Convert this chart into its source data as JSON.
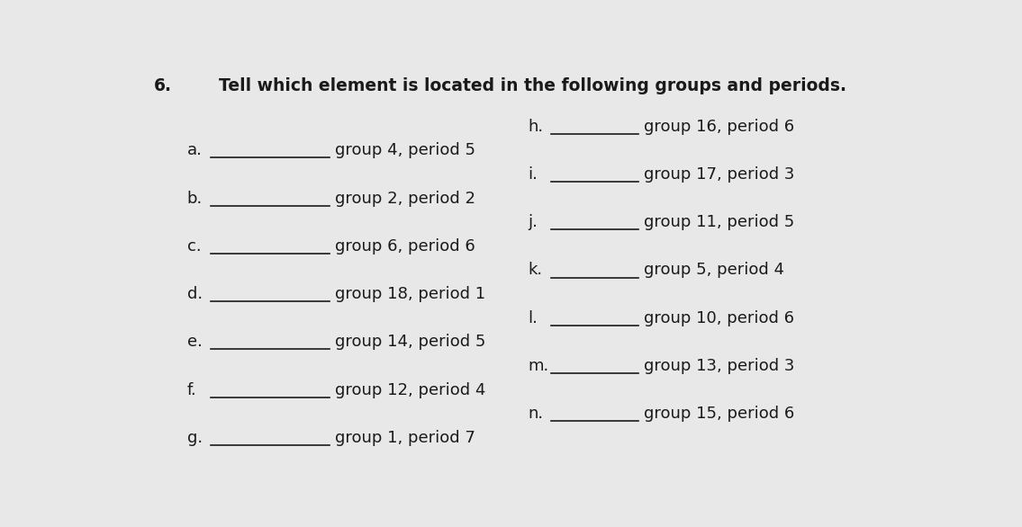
{
  "title": "Tell which element is located in the following groups and periods.",
  "question_number": "6.",
  "background_color": "#e8e8e8",
  "text_color": "#1a1a1a",
  "title_fontsize": 13.5,
  "label_fontsize": 13.0,
  "items_left": [
    {
      "label": "a.",
      "desc": "group 4, period 5"
    },
    {
      "label": "b.",
      "desc": "group 2, period 2"
    },
    {
      "label": "c.",
      "desc": "group 6, period 6"
    },
    {
      "label": "d.",
      "desc": "group 18, period 1"
    },
    {
      "label": "e.",
      "desc": "group 14, period 5"
    },
    {
      "label": "f.",
      "desc": "group 12, period 4"
    },
    {
      "label": "g.",
      "desc": "group 1, period 7"
    }
  ],
  "items_right": [
    {
      "label": "h.",
      "desc": "group 16, period 6"
    },
    {
      "label": "i.",
      "desc": "group 17, period 3"
    },
    {
      "label": "j.",
      "desc": "group 11, period 5"
    },
    {
      "label": "k.",
      "desc": "group 5, period 4"
    },
    {
      "label": "l.",
      "desc": "group 10, period 6"
    },
    {
      "label": "m.",
      "desc": "group 13, period 3"
    },
    {
      "label": "n.",
      "desc": "group 15, period 6"
    }
  ]
}
